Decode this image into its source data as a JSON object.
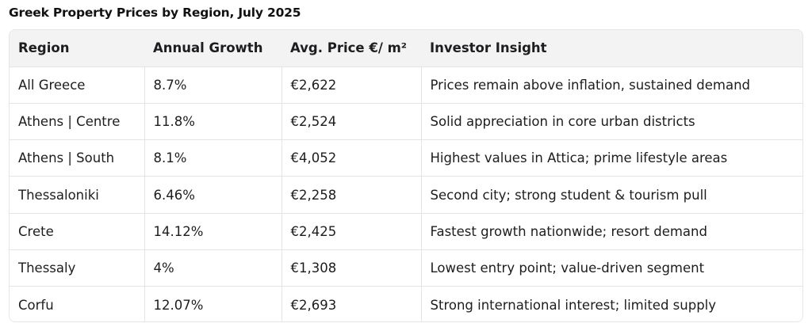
{
  "title": "Greek Property Prices by Region, July 2025",
  "table": {
    "headers": [
      "Region",
      "Annual Growth",
      "Avg. Price €/ m²",
      "Investor Insight"
    ],
    "rows": [
      [
        "All Greece",
        "8.7%",
        "€2,622",
        "Prices remain above inflation, sustained demand"
      ],
      [
        "Athens | Centre",
        "11.8%",
        "€2,524",
        "Solid appreciation in core urban districts"
      ],
      [
        "Athens | South",
        "8.1%",
        "€4,052",
        "Highest values in Attica; prime lifestyle areas"
      ],
      [
        "Thessaloniki",
        "6.46%",
        "€2,258",
        "Second city; strong student & tourism pull"
      ],
      [
        "Crete",
        "14.12%",
        "€2,425",
        "Fastest growth nationwide; resort demand"
      ],
      [
        "Thessaly",
        "4%",
        "€1,308",
        "Lowest entry point; value-driven segment"
      ],
      [
        "Corfu",
        "12.07%",
        "€2,693",
        "Strong international interest; limited supply"
      ]
    ]
  }
}
